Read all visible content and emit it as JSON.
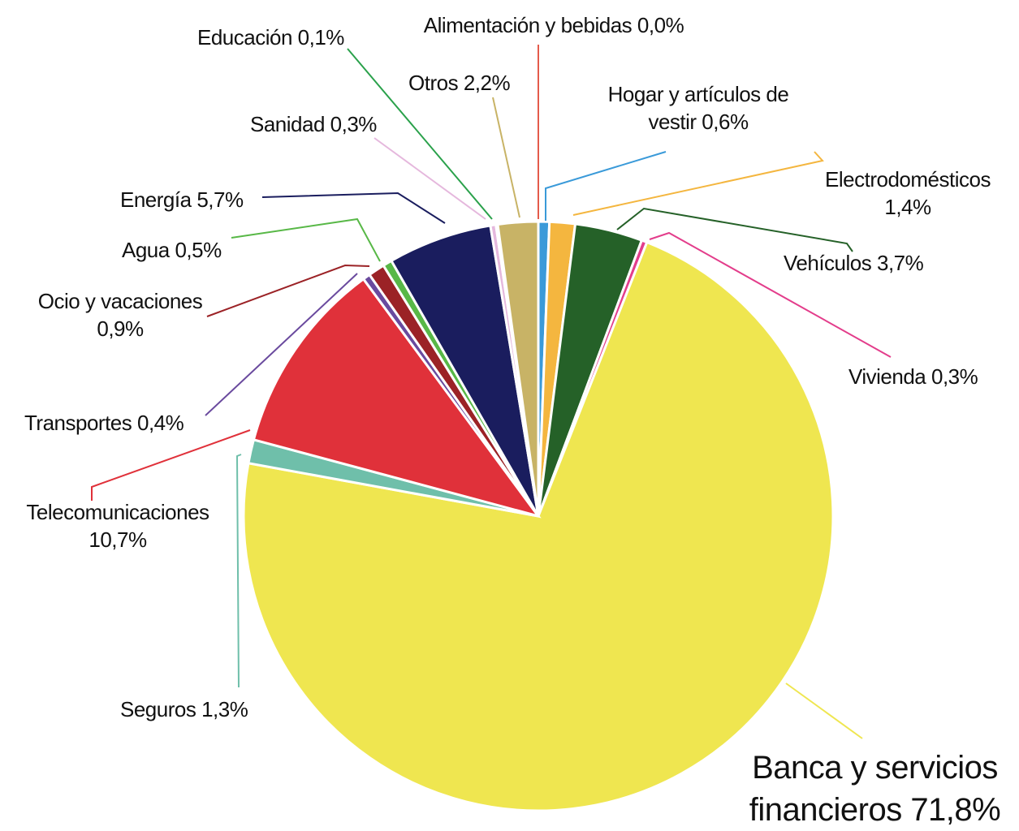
{
  "chart_data": {
    "type": "pie",
    "categories": [
      "Alimentación y bebidas",
      "Hogar y artículos de vestir",
      "Electrodomésticos",
      "Vehículos",
      "Vivienda",
      "Banca y servicios financieros",
      "Seguros",
      "Telecomunicaciones",
      "Transportes",
      "Ocio y vacaciones",
      "Agua",
      "Energía",
      "Sanidad",
      "Educación",
      "Otros"
    ],
    "values": [
      0.0,
      0.6,
      1.4,
      3.7,
      0.3,
      71.8,
      1.3,
      10.7,
      0.4,
      0.9,
      0.5,
      5.7,
      0.3,
      0.1,
      2.2
    ],
    "value_labels": [
      "0,0%",
      "0,6%",
      "1,4%",
      "3,7%",
      "0,3%",
      "71,8%",
      "1,3%",
      "10,7%",
      "0,4%",
      "0,9%",
      "0,5%",
      "5,7%",
      "0,3%",
      "0,1%",
      "2,2%"
    ],
    "colors": [
      "#e45b4b",
      "#3a9ad9",
      "#f4b63f",
      "#256128",
      "#e33d8b",
      "#efe650",
      "#6fbfaa",
      "#e0313a",
      "#6a4a9e",
      "#9b2226",
      "#58b847",
      "#1a1d5e",
      "#e5b8dd",
      "#2aa14b",
      "#c8b366"
    ]
  }
}
